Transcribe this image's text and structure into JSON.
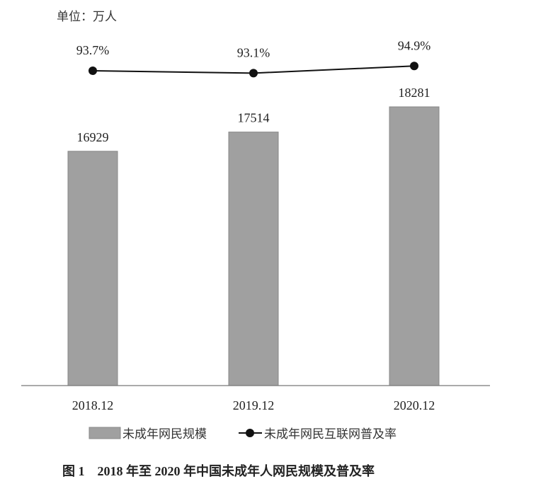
{
  "chart_data": {
    "type": "bar+line",
    "unit_label": "单位：万人",
    "categories": [
      "2018.12",
      "2019.12",
      "2020.12"
    ],
    "series": [
      {
        "name": "未成年网民规模",
        "type": "bar",
        "values": [
          16929,
          17514,
          18281
        ],
        "labels": [
          "16929",
          "17514",
          "18281"
        ],
        "color": "#a0a0a0"
      },
      {
        "name": "未成年网民互联网普及率",
        "type": "line",
        "values": [
          93.7,
          93.1,
          94.9
        ],
        "labels": [
          "93.7%",
          "93.1%",
          "94.9%"
        ],
        "color": "#111111"
      }
    ],
    "caption": "图 1　2018 年至 2020 年中国未成年人网民规模及普及率",
    "legend_position": "bottom",
    "grid": false
  }
}
